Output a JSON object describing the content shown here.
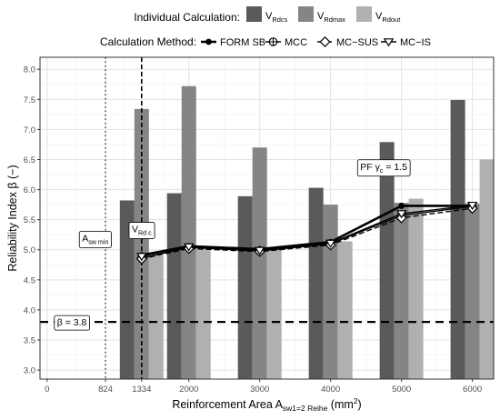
{
  "chart_data": {
    "type": "bar",
    "x_ticks": [
      0,
      824,
      1334,
      2000,
      3000,
      4000,
      5000,
      6000
    ],
    "x_tick_labels": [
      "0",
      "824",
      "1334",
      "2000",
      "3000",
      "4000",
      "5000",
      "6000"
    ],
    "xlim": [
      -100,
      6300
    ],
    "ylim": [
      2.85,
      8.2
    ],
    "y_ticks": [
      3.0,
      3.5,
      4.0,
      4.5,
      5.0,
      5.5,
      6.0,
      6.5,
      7.0,
      7.5,
      8.0
    ],
    "y_tick_labels": [
      "3.0",
      "3.5",
      "4.0",
      "4.5",
      "5.0",
      "5.5",
      "6.0",
      "6.5",
      "7.0",
      "7.5",
      "8.0"
    ],
    "xlabel": {
      "main": "Reinforcement Area A",
      "sub": "sw1=2 Reihe",
      "unit": " (mm",
      "sup": "2",
      "close": ")"
    },
    "ylabel": "Reliability Index  β (−)",
    "bar_categories": [
      1334,
      2000,
      3000,
      4000,
      5000,
      6000
    ],
    "bar_series": [
      {
        "key": "V",
        "sub": "Rdcs",
        "color": "#5a5a5a",
        "values": [
          5.82,
          5.94,
          5.89,
          6.03,
          6.79,
          7.49
        ]
      },
      {
        "key": "V",
        "sub": "Rdmax",
        "color": "#858585",
        "values": [
          7.34,
          7.72,
          6.7,
          5.75,
          5.78,
          5.77
        ]
      },
      {
        "key": "V",
        "sub": "Rdout",
        "color": "#b0b0b0",
        "values": [
          4.9,
          5.05,
          5.0,
          5.14,
          5.85,
          6.5
        ]
      }
    ],
    "line_x": [
      1334,
      2000,
      3000,
      4000,
      5000,
      6000
    ],
    "line_series": [
      {
        "name": "FORM SB",
        "marker": "dot",
        "dash": "",
        "width": 2.6,
        "values": [
          4.91,
          5.06,
          5.01,
          5.13,
          5.73,
          5.73
        ]
      },
      {
        "name": "MCC",
        "marker": "circle-cross",
        "dash": "",
        "width": 1.4,
        "values": [
          4.86,
          5.04,
          4.98,
          5.1,
          5.57,
          5.72
        ]
      },
      {
        "name": "MC−SUS",
        "marker": "diamond",
        "dash": "6 3",
        "width": 1.4,
        "values": [
          4.85,
          5.02,
          4.97,
          5.08,
          5.53,
          5.69
        ]
      },
      {
        "name": "MC−IS",
        "marker": "triangle-down",
        "dash": "",
        "width": 1.4,
        "values": [
          4.89,
          5.05,
          4.99,
          5.11,
          5.6,
          5.74
        ]
      }
    ],
    "hlines": [
      {
        "y": 3.8,
        "dash": "9 6"
      }
    ],
    "vlines": [
      {
        "x": 824,
        "dash": "1.5 3"
      },
      {
        "x": 1334,
        "dash": "5 3"
      }
    ],
    "annotations": [
      {
        "name": "beta-threshold-label",
        "x": 350,
        "y": 3.8,
        "parts": [
          {
            "t": "β = 3.8"
          }
        ]
      },
      {
        "name": "asw-min-label",
        "x": 680,
        "y": 5.2,
        "parts": [
          {
            "t": "A"
          },
          {
            "t": "sw min",
            "sub": true
          }
        ]
      },
      {
        "name": "vrdc-label",
        "x": 1334,
        "y": 5.35,
        "parts": [
          {
            "t": "V"
          },
          {
            "t": "Rd c",
            "sub": true
          }
        ]
      },
      {
        "name": "pf-gamma-label",
        "x": 4750,
        "y": 6.39,
        "parts": [
          {
            "t": "PF γ"
          },
          {
            "t": "c",
            "sub": true
          },
          {
            "t": " = 1.5"
          }
        ]
      }
    ],
    "legend_bars_title": "Individual Calculation:",
    "legend_lines_title": "Calculation Method:",
    "legend_position": "top",
    "grid": true
  }
}
